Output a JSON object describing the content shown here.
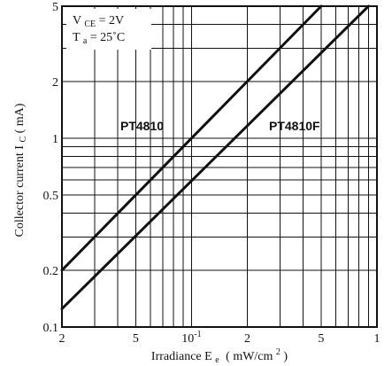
{
  "chart_data": {
    "type": "line",
    "xlabel_main": "Irradiance E",
    "xlabel_sub": "e",
    "xlabel_units": "( mW/cm",
    "xlabel_units_sup": "2",
    "xlabel_units_close": ")",
    "ylabel_main": "Collector current I",
    "ylabel_sub": "C",
    "ylabel_units": " ( mA)",
    "x_scale": "log",
    "y_scale": "log",
    "xlim": [
      0.02,
      1
    ],
    "ylim": [
      0.1,
      5
    ],
    "grid": true,
    "x_ticks": [
      {
        "value": 0.02,
        "label": "2"
      },
      {
        "value": 0.05,
        "label": "5"
      },
      {
        "value": 0.1,
        "label": "10",
        "sup": "-1"
      },
      {
        "value": 0.2,
        "label": "2"
      },
      {
        "value": 0.5,
        "label": "5"
      },
      {
        "value": 1,
        "label": "1"
      }
    ],
    "y_ticks": [
      {
        "value": 0.1,
        "label": "0.1"
      },
      {
        "value": 0.2,
        "label": "0.2"
      },
      {
        "value": 0.5,
        "label": "0.5"
      },
      {
        "value": 1,
        "label": "1"
      },
      {
        "value": 2,
        "label": "2"
      },
      {
        "value": 5,
        "label": "5"
      }
    ],
    "conditions": {
      "vce_main": "V",
      "vce_sub": "CE",
      "vce_value": " = 2V",
      "ta_main": "T",
      "ta_sub": "a",
      "ta_value": " = 25˚C"
    },
    "series": [
      {
        "name": "PT4810",
        "x": [
          0.02,
          0.5
        ],
        "y": [
          0.2,
          5
        ]
      },
      {
        "name": "PT4810F",
        "x": [
          0.02,
          0.9
        ],
        "y": [
          0.125,
          5
        ]
      }
    ]
  }
}
